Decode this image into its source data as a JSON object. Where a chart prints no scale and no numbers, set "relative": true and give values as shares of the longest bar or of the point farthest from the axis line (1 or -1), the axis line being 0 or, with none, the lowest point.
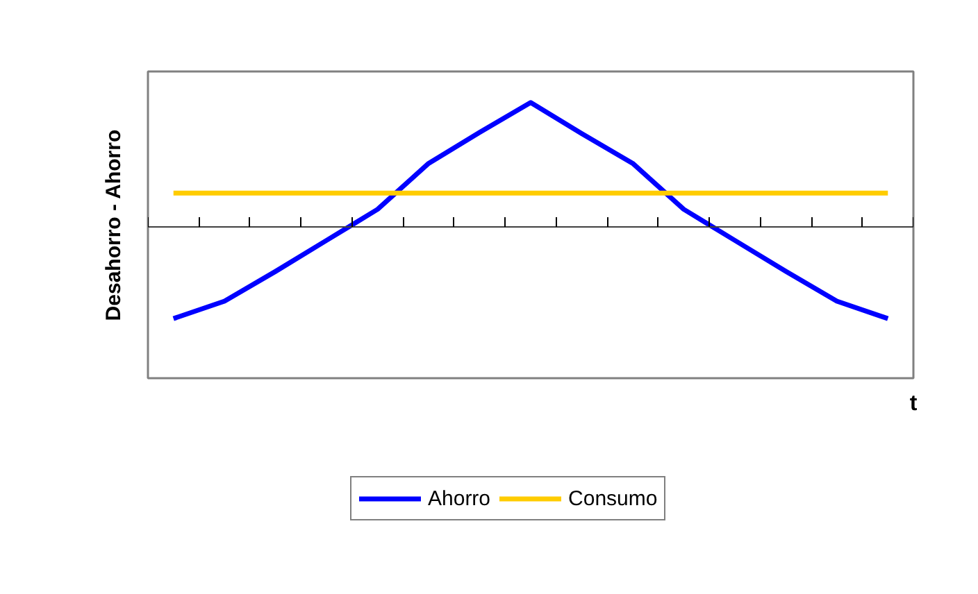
{
  "chart_data": {
    "type": "line",
    "relative": true,
    "xlabel": "t",
    "ylabel": "Desahorro - Ahorro",
    "categories": [
      null,
      null,
      null,
      null,
      null,
      null,
      null,
      null,
      null,
      null,
      null,
      null,
      null,
      null,
      null
    ],
    "series": [
      {
        "name": "Ahorro",
        "color": "#0000ff",
        "values": [
          -0.74,
          -0.6,
          -0.36,
          -0.11,
          0.14,
          0.51,
          0.76,
          1,
          0.75,
          0.51,
          0.14,
          -0.11,
          -0.36,
          -0.6,
          -0.74
        ]
      },
      {
        "name": "Consumo",
        "color": "#ffcc00",
        "values": [
          0.27,
          0.27,
          0.27,
          0.27,
          0.27,
          0.27,
          0.27,
          0.27,
          0.27,
          0.27,
          0.27,
          0.27,
          0.27,
          0.27,
          0.27
        ]
      }
    ],
    "legend": "bottom",
    "tick_labels": false,
    "marker": "none",
    "line_style": "solid"
  }
}
